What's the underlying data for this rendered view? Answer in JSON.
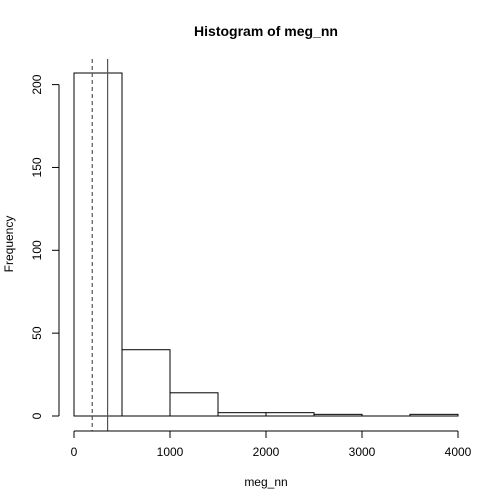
{
  "chart_data": {
    "type": "bar",
    "title": "Histogram of meg_nn",
    "xlabel": "meg_nn",
    "ylabel": "Frequency",
    "bins": [
      {
        "start": 0,
        "end": 500,
        "count": 207
      },
      {
        "start": 500,
        "end": 1000,
        "count": 40
      },
      {
        "start": 1000,
        "end": 1500,
        "count": 14
      },
      {
        "start": 1500,
        "end": 2000,
        "count": 2
      },
      {
        "start": 2000,
        "end": 2500,
        "count": 2
      },
      {
        "start": 2500,
        "end": 3000,
        "count": 1
      },
      {
        "start": 3000,
        "end": 3500,
        "count": 0
      },
      {
        "start": 3500,
        "end": 4000,
        "count": 1
      }
    ],
    "xlim": [
      0,
      4000
    ],
    "ylim": [
      0,
      207
    ],
    "x_ticks": [
      0,
      1000,
      2000,
      3000,
      4000
    ],
    "y_ticks": [
      0,
      50,
      100,
      150,
      200
    ],
    "reference_lines": [
      {
        "x": 350,
        "style": "solid"
      },
      {
        "x": 190,
        "style": "dashed"
      }
    ]
  }
}
